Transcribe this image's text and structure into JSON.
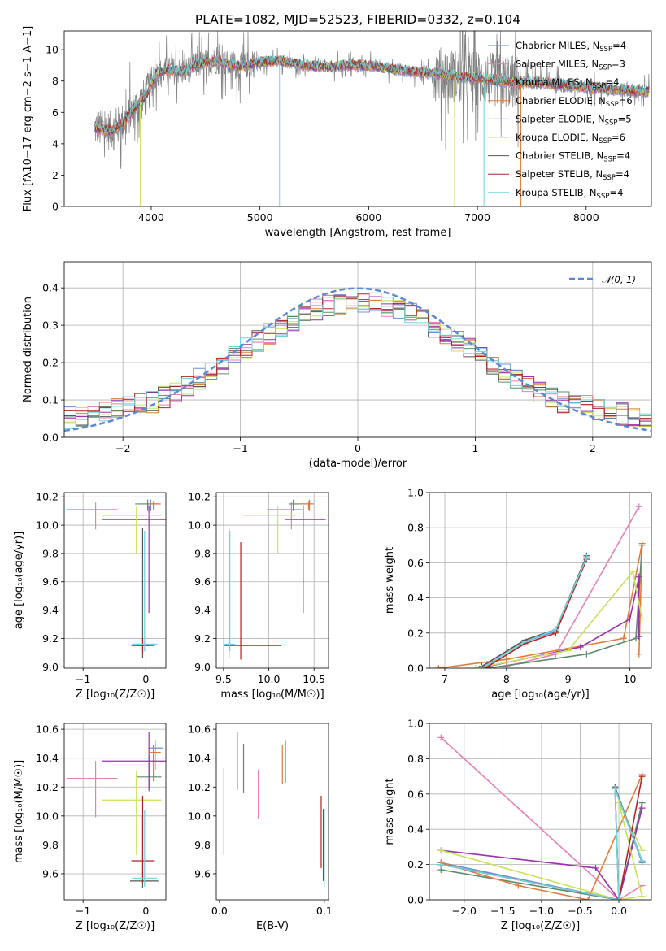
{
  "figure": {
    "title": "PLATE=1082, MJD=52523, FIBERID=0332, z=0.104"
  },
  "legend": {
    "spectrum_entries": [
      {
        "label": "Chabrier MILES, N",
        "sub": "SSP",
        "eq": "=4",
        "color": "#6b8fd6"
      },
      {
        "label": "Salpeter MILES, N",
        "sub": "SSP",
        "eq": "=3",
        "color": "#e87fb6"
      },
      {
        "label": "Kroupa MILES, N",
        "sub": "SSP",
        "eq": "=4",
        "color": "#5d8a6e"
      },
      {
        "label": "Chabrier ELODIE, N",
        "sub": "SSP",
        "eq": "=6",
        "color": "#e07b39"
      },
      {
        "label": "Salpeter ELODIE, N",
        "sub": "SSP",
        "eq": "=5",
        "color": "#9b2fae"
      },
      {
        "label": "Kroupa ELODIE, N",
        "sub": "SSP",
        "eq": "=6",
        "color": "#c7e35a"
      },
      {
        "label": "Chabrier STELIB, N",
        "sub": "SSP",
        "eq": "=4",
        "color": "#555555"
      },
      {
        "label": "Salpeter STELIB, N",
        "sub": "SSP",
        "eq": "=4",
        "color": "#b22222"
      },
      {
        "label": "Kroupa STELIB, N",
        "sub": "SSP",
        "eq": "=4",
        "color": "#6fd6dc"
      }
    ],
    "normal_label": "𝒩(0, 1)",
    "normal_color": "#5b87d6"
  },
  "chart_data": [
    {
      "id": "spectrum",
      "type": "line",
      "xlabel": "wavelength [Angstrom, rest frame]",
      "ylabel": "Flux [f",
      "ylabel_parts": [
        "Flux [f",
        "λ",
        "10",
        "−17",
        " erg cm",
        "−2",
        " s",
        "−1",
        " A",
        "−1",
        "]"
      ],
      "xlim": [
        3200,
        8600
      ],
      "ylim": [
        0,
        11.2
      ],
      "xticks": [
        4000,
        5000,
        6000,
        7000,
        8000
      ],
      "yticks": [
        0,
        2,
        4,
        6,
        8,
        10
      ],
      "data_color": "#808080",
      "model_profile": {
        "x": [
          3480,
          3550,
          3650,
          3750,
          3850,
          3950,
          4050,
          4150,
          4300,
          4450,
          4600,
          4800,
          5000,
          5200,
          5400,
          5600,
          5800,
          6000,
          6200,
          6400,
          6600,
          6800,
          7000,
          7200,
          7400,
          7600,
          7800,
          8000,
          8200,
          8400,
          8600
        ],
        "y": [
          5.0,
          4.9,
          4.85,
          5.4,
          6.3,
          7.0,
          8.5,
          8.7,
          8.6,
          9.1,
          9.3,
          8.9,
          9.2,
          9.3,
          9.0,
          8.9,
          9.0,
          9.0,
          8.8,
          8.6,
          8.5,
          8.3,
          8.2,
          8.0,
          7.9,
          7.9,
          7.7,
          7.6,
          7.5,
          7.4,
          7.3
        ]
      },
      "model_drops": [
        {
          "x": 3900,
          "color": "#c7e35a"
        },
        {
          "x": 5180,
          "color": "#6fd6dc"
        },
        {
          "x": 6790,
          "color": "#c7e35a"
        },
        {
          "x": 7060,
          "color": "#6fd6dc"
        },
        {
          "x": 7400,
          "color": "#e07b39"
        }
      ]
    },
    {
      "id": "residuals",
      "type": "histogram",
      "xlabel": "(data-model)/error",
      "ylabel": "Normed distribution",
      "xlim": [
        -2.5,
        2.5
      ],
      "ylim": [
        0,
        0.47
      ],
      "xticks": [
        -2,
        -1,
        0,
        1,
        2
      ],
      "yticks": [
        0.0,
        0.1,
        0.2,
        0.3,
        0.4
      ],
      "ytick_labels": [
        "0.0",
        "0.1",
        "0.2",
        "0.3",
        "0.4"
      ],
      "bin_width": 0.1,
      "normal": {
        "mean": 0,
        "sigma": 1
      }
    },
    {
      "id": "age-vs-Z",
      "type": "errorbar",
      "xlabel": "Z [log₁₀(Z/Z☉)]",
      "ylabel": "age  [log₁₀(age/yr)]",
      "xlim": [
        -1.3,
        0.32
      ],
      "ylim": [
        8.99,
        10.23
      ],
      "xticks": [
        -1,
        0
      ],
      "yticks": [
        9.0,
        9.2,
        9.4,
        9.6,
        9.8,
        10.0,
        10.2
      ],
      "points": [
        {
          "color": "#6b8fd6",
          "x": 0.08,
          "y": 10.15,
          "xerr": [
            0.13,
            0.12
          ],
          "yerr": [
            0.05,
            0.03
          ]
        },
        {
          "color": "#e87fb6",
          "x": -0.8,
          "y": 10.11,
          "xerr": [
            0.45,
            0.35
          ],
          "yerr": [
            0.14,
            0.05
          ]
        },
        {
          "color": "#5d8a6e",
          "x": 0.03,
          "y": 10.15,
          "xerr": [
            0.2,
            0.18
          ],
          "yerr": [
            0.05,
            0.03
          ]
        },
        {
          "color": "#e07b39",
          "x": 0.12,
          "y": 10.15,
          "xerr": [
            0.06,
            0.12
          ],
          "yerr": [
            0.04,
            0.02
          ]
        },
        {
          "color": "#9b2fae",
          "x": 0.05,
          "y": 10.04,
          "xerr": [
            0.75,
            0.28
          ],
          "yerr": [
            0.66,
            0.1
          ]
        },
        {
          "color": "#c7e35a",
          "x": -0.15,
          "y": 10.07,
          "xerr": [
            0.55,
            0.4
          ],
          "yerr": [
            0.27,
            0.06
          ]
        },
        {
          "color": "#555555",
          "x": -0.05,
          "y": 9.15,
          "xerr": [
            0.1,
            0.1
          ],
          "yerr": [
            0.09,
            0.83
          ]
        },
        {
          "color": "#b22222",
          "x": -0.05,
          "y": 9.15,
          "xerr": [
            0.18,
            0.18
          ],
          "yerr": [
            0.05,
            0.05
          ]
        },
        {
          "color": "#6fd6dc",
          "x": -0.02,
          "y": 9.16,
          "xerr": [
            0.2,
            0.2
          ],
          "yerr": [
            0.05,
            0.8
          ]
        }
      ]
    },
    {
      "id": "age-vs-mass",
      "type": "errorbar",
      "xlabel": "mass [log₁₀(M/M☉)]",
      "ylabel": "",
      "xlim": [
        9.42,
        10.66
      ],
      "ylim": [
        8.99,
        10.23
      ],
      "xticks": [
        9.5,
        10.0,
        10.5
      ],
      "yticks": [
        9.0,
        9.2,
        9.4,
        9.6,
        9.8,
        10.0,
        10.2
      ],
      "points": [
        {
          "color": "#6b8fd6",
          "x": 10.45,
          "y": 10.15,
          "xerr": [
            0.1,
            0.05
          ],
          "yerr": [
            0.05,
            0.03
          ]
        },
        {
          "color": "#e87fb6",
          "x": 10.25,
          "y": 10.11,
          "xerr": [
            0.27,
            0.12
          ],
          "yerr": [
            0.14,
            0.05
          ]
        },
        {
          "color": "#5d8a6e",
          "x": 10.27,
          "y": 10.15,
          "xerr": [
            0.05,
            0.2
          ],
          "yerr": [
            0.05,
            0.03
          ]
        },
        {
          "color": "#e07b39",
          "x": 10.44,
          "y": 10.15,
          "xerr": [
            0.1,
            0.05
          ],
          "yerr": [
            0.04,
            0.02
          ]
        },
        {
          "color": "#9b2fae",
          "x": 10.38,
          "y": 10.04,
          "xerr": [
            0.2,
            0.25
          ],
          "yerr": [
            0.66,
            0.1
          ]
        },
        {
          "color": "#c7e35a",
          "x": 10.1,
          "y": 10.07,
          "xerr": [
            0.38,
            0.2
          ],
          "yerr": [
            0.27,
            0.06
          ]
        },
        {
          "color": "#555555",
          "x": 9.56,
          "y": 9.15,
          "xerr": [
            0.05,
            0.05
          ],
          "yerr": [
            0.09,
            0.83
          ]
        },
        {
          "color": "#b22222",
          "x": 9.69,
          "y": 9.15,
          "xerr": [
            0.15,
            0.45
          ],
          "yerr": [
            0.1,
            0.73
          ]
        },
        {
          "color": "#6fd6dc",
          "x": 9.57,
          "y": 9.16,
          "xerr": [
            0.06,
            0.06
          ],
          "yerr": [
            0.05,
            0.8
          ]
        }
      ]
    },
    {
      "id": "weight-vs-age",
      "type": "line",
      "xlabel": "age  [log₁₀(age/yr)]",
      "ylabel": "mass weight",
      "xlim": [
        6.75,
        10.35
      ],
      "ylim": [
        0,
        1.0
      ],
      "xticks": [
        7,
        8,
        9,
        10
      ],
      "yticks": [
        0.0,
        0.2,
        0.4,
        0.6,
        0.8,
        1.0
      ],
      "series": [
        {
          "color": "#6b8fd6",
          "x": [
            7.6,
            8.3,
            8.8,
            9.3
          ],
          "y": [
            0.0,
            0.15,
            0.21,
            0.63
          ]
        },
        {
          "color": "#e87fb6",
          "x": [
            8.0,
            8.8,
            10.15
          ],
          "y": [
            0.01,
            0.08,
            0.92
          ]
        },
        {
          "color": "#5d8a6e",
          "x": [
            7.7,
            9.3,
            10.1,
            10.2
          ],
          "y": [
            0.0,
            0.08,
            0.17,
            0.7
          ]
        },
        {
          "color": "#e07b39",
          "x": [
            6.9,
            8.0,
            9.9,
            10.2,
            10.15
          ],
          "y": [
            0.0,
            0.05,
            0.17,
            0.71,
            0.08
          ]
        },
        {
          "color": "#9b2fae",
          "x": [
            7.7,
            9.2,
            10.0,
            10.15,
            10.15
          ],
          "y": [
            0.01,
            0.12,
            0.28,
            0.52,
            0.18
          ]
        },
        {
          "color": "#c7e35a",
          "x": [
            7.5,
            9.0,
            10.05,
            10.2
          ],
          "y": [
            0.0,
            0.1,
            0.55,
            0.28
          ]
        },
        {
          "color": "#555555",
          "x": [
            7.6,
            8.3,
            8.8,
            9.3
          ],
          "y": [
            0.01,
            0.16,
            0.22,
            0.64
          ]
        },
        {
          "color": "#b22222",
          "x": [
            7.65,
            8.3,
            8.8,
            9.3
          ],
          "y": [
            0.0,
            0.14,
            0.2,
            0.62
          ]
        },
        {
          "color": "#6fd6dc",
          "x": [
            7.6,
            8.3,
            8.8,
            9.3
          ],
          "y": [
            0.0,
            0.15,
            0.22,
            0.63
          ]
        }
      ]
    },
    {
      "id": "mass-vs-Z",
      "type": "errorbar",
      "xlabel": "Z [log₁₀(Z/Z☉)]",
      "ylabel": "mass [log₁₀(M/M☉)]",
      "xlim": [
        -1.3,
        0.32
      ],
      "ylim": [
        9.42,
        10.64
      ],
      "xticks": [
        -1,
        0
      ],
      "yticks": [
        9.6,
        9.8,
        10.0,
        10.2,
        10.4,
        10.6
      ],
      "points": [
        {
          "color": "#6b8fd6",
          "x": 0.15,
          "y": 10.47,
          "xerr": [
            0.1,
            0.12
          ],
          "yerr": [
            0.15,
            0.05
          ]
        },
        {
          "color": "#e87fb6",
          "x": -0.8,
          "y": 10.26,
          "xerr": [
            0.45,
            0.35
          ],
          "yerr": [
            0.27,
            0.12
          ]
        },
        {
          "color": "#5d8a6e",
          "x": 0.05,
          "y": 10.27,
          "xerr": [
            0.2,
            0.2
          ],
          "yerr": [
            0.1,
            0.15
          ]
        },
        {
          "color": "#e07b39",
          "x": 0.12,
          "y": 10.44,
          "xerr": [
            0.06,
            0.12
          ],
          "yerr": [
            0.2,
            0.05
          ]
        },
        {
          "color": "#9b2fae",
          "x": 0.05,
          "y": 10.38,
          "xerr": [
            0.75,
            0.28
          ],
          "yerr": [
            0.2,
            0.2
          ]
        },
        {
          "color": "#c7e35a",
          "x": -0.15,
          "y": 10.11,
          "xerr": [
            0.55,
            0.4
          ],
          "yerr": [
            0.38,
            0.2
          ]
        },
        {
          "color": "#555555",
          "x": -0.05,
          "y": 9.55,
          "xerr": [
            0.2,
            0.25
          ],
          "yerr": [
            0.05,
            0.45
          ]
        },
        {
          "color": "#b22222",
          "x": -0.05,
          "y": 9.69,
          "xerr": [
            0.18,
            0.18
          ],
          "yerr": [
            0.15,
            0.45
          ]
        },
        {
          "color": "#6fd6dc",
          "x": -0.02,
          "y": 9.57,
          "xerr": [
            0.2,
            0.2
          ],
          "yerr": [
            0.06,
            0.47
          ]
        }
      ]
    },
    {
      "id": "mass-vs-EBV",
      "type": "errorbar",
      "xlabel": "E(B-V)",
      "ylabel": "",
      "xlim": [
        -0.003,
        0.104
      ],
      "ylim": [
        9.42,
        10.64
      ],
      "xticks": [
        0.0,
        0.1
      ],
      "xtick_labels": [
        "0.0",
        "0.1"
      ],
      "yticks": [
        9.6,
        9.8,
        10.0,
        10.2,
        10.4,
        10.6
      ],
      "points": [
        {
          "color": "#6b8fd6",
          "x": 0.063,
          "y": 10.35,
          "xerr": [
            0,
            0
          ],
          "yerr": [
            0.12,
            0.17
          ]
        },
        {
          "color": "#e87fb6",
          "x": 0.037,
          "y": 10.15,
          "xerr": [
            0,
            0
          ],
          "yerr": [
            0.17,
            0.17
          ]
        },
        {
          "color": "#5d8a6e",
          "x": 0.023,
          "y": 10.33,
          "xerr": [
            0,
            0
          ],
          "yerr": [
            0.17,
            0.17
          ]
        },
        {
          "color": "#e07b39",
          "x": 0.06,
          "y": 10.35,
          "xerr": [
            0,
            0
          ],
          "yerr": [
            0.13,
            0.14
          ]
        },
        {
          "color": "#9b2fae",
          "x": 0.017,
          "y": 10.38,
          "xerr": [
            0,
            0
          ],
          "yerr": [
            0.2,
            0.2
          ]
        },
        {
          "color": "#c7e35a",
          "x": 0.004,
          "y": 10.03,
          "xerr": [
            0,
            0
          ],
          "yerr": [
            0.3,
            0.3
          ]
        },
        {
          "color": "#555555",
          "x": 0.099,
          "y": 9.75,
          "xerr": [
            0,
            0
          ],
          "yerr": [
            0.2,
            0.3
          ]
        },
        {
          "color": "#b22222",
          "x": 0.097,
          "y": 9.89,
          "xerr": [
            0,
            0
          ],
          "yerr": [
            0.25,
            0.25
          ]
        },
        {
          "color": "#6fd6dc",
          "x": 0.1,
          "y": 9.78,
          "xerr": [
            0,
            0
          ],
          "yerr": [
            0.27,
            0.27
          ]
        }
      ]
    },
    {
      "id": "weight-vs-Z",
      "type": "line",
      "xlabel": "Z [log₁₀(Z/Z☉)]",
      "ylabel": "mass weight",
      "xlim": [
        -2.45,
        0.42
      ],
      "ylim": [
        0,
        1.0
      ],
      "xticks": [
        -2.0,
        -1.5,
        -1.0,
        -0.5,
        0.0
      ],
      "xtick_labels": [
        "−2.0",
        "−1.5",
        "−1.0",
        "−0.5",
        "0.0"
      ],
      "yticks": [
        0.0,
        0.2,
        0.4,
        0.6,
        0.8,
        1.0
      ],
      "series": [
        {
          "color": "#6b8fd6",
          "x": [
            -2.3,
            0.0,
            -0.05,
            0.3
          ],
          "y": [
            0.21,
            0.0,
            0.63,
            0.21
          ]
        },
        {
          "color": "#e87fb6",
          "x": [
            -2.3,
            0.0,
            0.3
          ],
          "y": [
            0.92,
            0.0,
            0.08
          ]
        },
        {
          "color": "#5d8a6e",
          "x": [
            -2.3,
            0.0,
            0.3
          ],
          "y": [
            0.17,
            0.0,
            0.55
          ]
        },
        {
          "color": "#e07b39",
          "x": [
            -2.3,
            -1.3,
            -0.4,
            0.3
          ],
          "y": [
            0.21,
            0.08,
            0.0,
            0.71
          ]
        },
        {
          "color": "#9b2fae",
          "x": [
            -2.3,
            -0.3,
            0.0,
            0.3
          ],
          "y": [
            0.28,
            0.18,
            0.0,
            0.52
          ]
        },
        {
          "color": "#c7e35a",
          "x": [
            -2.3,
            0.0,
            0.3,
            0.0,
            0.3
          ],
          "y": [
            0.28,
            0.0,
            0.02,
            0.55,
            0.28
          ]
        },
        {
          "color": "#555555",
          "x": [
            -2.3,
            0.0,
            -0.05,
            0.3
          ],
          "y": [
            0.2,
            0.0,
            0.64,
            0.22
          ]
        },
        {
          "color": "#b22222",
          "x": [
            -2.3,
            0.0,
            0.3
          ],
          "y": [
            0.2,
            0.0,
            0.7
          ]
        },
        {
          "color": "#6fd6dc",
          "x": [
            -2.3,
            0.0,
            -0.05,
            0.3
          ],
          "y": [
            0.2,
            0.0,
            0.63,
            0.22
          ]
        }
      ]
    }
  ]
}
